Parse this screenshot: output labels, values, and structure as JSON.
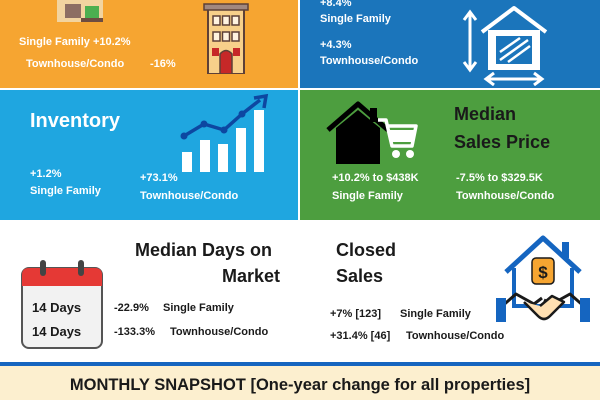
{
  "new_listings": {
    "single_family": "Single Family +10.2%",
    "townhouse": "Townhouse/Condo",
    "townhouse_value": "-16%"
  },
  "sq_ft": {
    "sf_value": "+8.4%",
    "sf_label": "Single Family",
    "th_value": "+4.3%",
    "th_label": "Townhouse/Condo"
  },
  "inventory": {
    "title": "Inventory",
    "sf_value": "+1.2%",
    "sf_label": "Single Family",
    "th_value": "+73.1%",
    "th_label": "Townhouse/Condo"
  },
  "median_price": {
    "title_line1": "Median",
    "title_line2": "Sales Price",
    "sf_value": "+10.2% to $438K",
    "sf_label": "Single Family",
    "th_value": "-7.5% to $329.5K",
    "th_label": "Townhouse/Condo"
  },
  "days_on_market": {
    "title_line1": "Median Days on",
    "title_line2": "Market",
    "cal_value1": "14 Days",
    "cal_value2": "14 Days",
    "sf_value": "-22.9%",
    "sf_label": "Single Family",
    "th_value": "-133.3%",
    "th_label": "Townhouse/Condo"
  },
  "closed_sales": {
    "title_line1": "Closed",
    "title_line2": "Sales",
    "sf_value": "+7% [123]",
    "sf_label": "Single Family",
    "th_value": "+31.4% [46]",
    "th_label": "Townhouse/Condo"
  },
  "footer": {
    "banner": "MONTHLY SNAPSHOT [One-year change for all properties]"
  },
  "colors": {
    "orange": "#F6A531",
    "blue": "#1B75BB",
    "sky": "#1FA6E0",
    "green": "#4D9E3F",
    "banner": "#FCEFCF",
    "stripe": "#1565C0",
    "red": "#E53935"
  },
  "icons": [
    "building-icon",
    "house-size-icon",
    "bar-growth-chart-icon",
    "house-cart-icon",
    "calendar-icon",
    "house-handshake-icon"
  ]
}
